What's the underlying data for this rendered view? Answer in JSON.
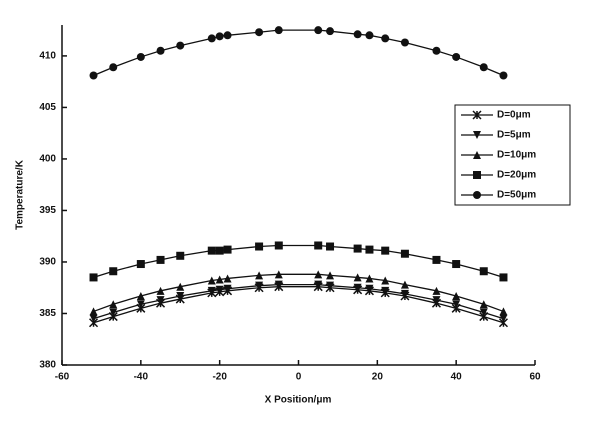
{
  "chart_data": {
    "type": "line",
    "x_label": "X Position/μm",
    "y_label": "Temperature/K",
    "x": [
      -52,
      -47,
      -40,
      -35,
      -30,
      -22,
      -20,
      -18,
      -10,
      -5,
      5,
      8,
      15,
      18,
      22,
      27,
      35,
      40,
      47,
      52
    ],
    "series": [
      {
        "name": "D=0μm",
        "color": "#111111",
        "marker": "star",
        "values": [
          384.1,
          384.7,
          385.5,
          386.0,
          386.4,
          387.0,
          387.1,
          387.2,
          387.5,
          387.6,
          387.6,
          387.5,
          387.3,
          387.2,
          387.0,
          386.7,
          386.0,
          385.5,
          384.7,
          384.1
        ]
      },
      {
        "name": "D=5μm",
        "color": "#111111",
        "marker": "triangle-down",
        "values": [
          384.5,
          385.1,
          385.9,
          386.3,
          386.7,
          387.2,
          387.3,
          387.4,
          387.7,
          387.8,
          387.8,
          387.7,
          387.5,
          387.4,
          387.2,
          386.9,
          386.3,
          385.9,
          385.1,
          384.5
        ]
      },
      {
        "name": "D=10μm",
        "color": "#111111",
        "marker": "triangle-up",
        "values": [
          385.2,
          385.9,
          386.7,
          387.2,
          387.6,
          388.2,
          388.3,
          388.4,
          388.7,
          388.8,
          388.8,
          388.7,
          388.5,
          388.4,
          388.2,
          387.8,
          387.2,
          386.7,
          385.9,
          385.2
        ]
      },
      {
        "name": "D=20μm",
        "color": "#111111",
        "marker": "square",
        "values": [
          388.5,
          389.1,
          389.8,
          390.2,
          390.6,
          391.1,
          391.1,
          391.2,
          391.5,
          391.6,
          391.6,
          391.5,
          391.3,
          391.2,
          391.1,
          390.8,
          390.2,
          389.8,
          389.1,
          388.5
        ]
      },
      {
        "name": "D=50μm",
        "color": "#111111",
        "marker": "circle",
        "values": [
          408.1,
          408.9,
          409.9,
          410.5,
          411.0,
          411.7,
          411.9,
          412.0,
          412.3,
          412.5,
          412.5,
          412.4,
          412.1,
          412.0,
          411.7,
          411.3,
          410.5,
          409.9,
          408.9,
          408.1
        ]
      }
    ],
    "xlim": [
      -60,
      60
    ],
    "xticks": [
      -60,
      -40,
      -20,
      0,
      20,
      40,
      60
    ],
    "ylim": [
      380,
      413
    ],
    "yticks": [
      380,
      385,
      390,
      395,
      400,
      405,
      410
    ],
    "grid": false,
    "legend": "right"
  }
}
